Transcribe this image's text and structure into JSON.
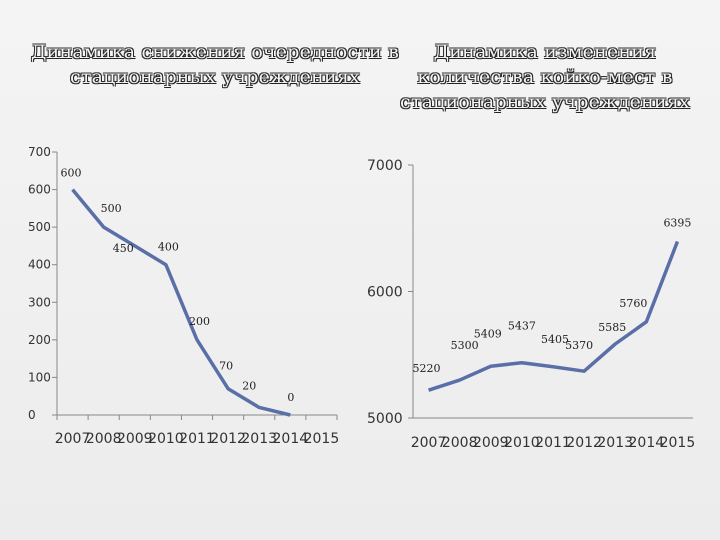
{
  "titles": {
    "left": "Динамика снижения очередности в стационарных учреждениях",
    "right": "Динамика изменения количества койко-мест в стационарных учреждениях"
  },
  "chart_data": [
    {
      "type": "line",
      "title": "Динамика снижения очередности в стационарных учреждениях",
      "categories": [
        "2007",
        "2008",
        "2009",
        "2010",
        "2011",
        "2012",
        "2013",
        "2014",
        "2015"
      ],
      "values": [
        600,
        500,
        450,
        400,
        200,
        70,
        20,
        0,
        null
      ],
      "data_labels": [
        "600",
        "500",
        "450",
        "400",
        "200",
        "70",
        "20",
        "0",
        ""
      ],
      "yticks": [
        0,
        100,
        200,
        300,
        400,
        500,
        600,
        700
      ],
      "ylim": [
        0,
        700
      ],
      "line_color": "#5a6fa8"
    },
    {
      "type": "line",
      "title": "Динамика изменения количества койко-мест в стационарных учреждениях",
      "categories": [
        "2007",
        "2008",
        "2009",
        "2010",
        "2011",
        "2012",
        "2013",
        "2014",
        "2015"
      ],
      "values": [
        5220,
        5300,
        5409,
        5437,
        5405,
        5370,
        5585,
        5760,
        6395
      ],
      "data_labels": [
        "5220",
        "5300",
        "5409",
        "5437",
        "5405",
        "5370",
        "5585",
        "5760",
        "6395"
      ],
      "yticks": [
        5000,
        6000,
        7000
      ],
      "ylim": [
        5000,
        7000
      ],
      "line_color": "#5a6fa8"
    }
  ]
}
